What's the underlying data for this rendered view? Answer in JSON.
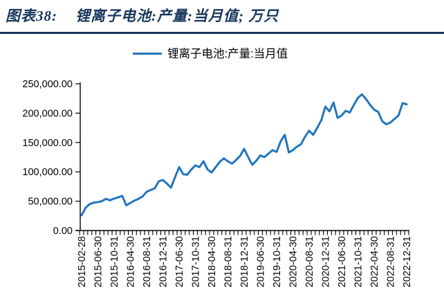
{
  "header": {
    "figure_label": "图表38:",
    "figure_title": "锂离子电池:产量:当月值; 万只"
  },
  "legend": {
    "label": "锂离子电池:产量:当月值"
  },
  "colors": {
    "title_navy": "#16365c",
    "rule_navy": "#16365c",
    "series_blue": "#2175bc",
    "axis_black": "#000000"
  },
  "chart_data": {
    "type": "line",
    "title": "锂离子电池:产量:当月值",
    "unit": "万只",
    "legend_position": "top-center",
    "grid": false,
    "ylim": [
      0,
      250000
    ],
    "y_tick_step": 50000,
    "y_tick_labels": [
      "0.00",
      "50,000.00",
      "100,000.00",
      "150,000.00",
      "200,000.00",
      "250,000.00"
    ],
    "x_label_every": 4,
    "x_tick_labels": [
      "2015-02-28",
      "2015-06-30",
      "2015-10-31",
      "2016-04-30",
      "2016-08-31",
      "2016-12-31",
      "2017-06-30",
      "2017-10-31",
      "2018-04-30",
      "2018-08-31",
      "2018-12-31",
      "2019-06-30",
      "2019-10-31",
      "2020-04-30",
      "2020-08-31",
      "2020-12-31",
      "2021-06-30",
      "2021-10-31",
      "2022-04-30",
      "2022-08-31",
      "2022-12-31"
    ],
    "x": [
      "2015-02-28",
      "2015-03-31",
      "2015-04-30",
      "2015-05-31",
      "2015-06-30",
      "2015-07-31",
      "2015-08-31",
      "2015-09-30",
      "2015-10-31",
      "2015-11-30",
      "2015-12-31",
      "2016-03-31",
      "2016-04-30",
      "2016-05-31",
      "2016-06-30",
      "2016-07-31",
      "2016-08-31",
      "2016-09-30",
      "2016-10-31",
      "2016-11-30",
      "2016-12-31",
      "2017-03-31",
      "2017-04-30",
      "2017-05-31",
      "2017-06-30",
      "2017-07-31",
      "2017-08-31",
      "2017-09-30",
      "2017-10-31",
      "2017-11-30",
      "2017-12-31",
      "2018-03-31",
      "2018-04-30",
      "2018-05-31",
      "2018-06-30",
      "2018-07-31",
      "2018-08-31",
      "2018-09-30",
      "2018-10-31",
      "2018-11-30",
      "2018-12-31",
      "2019-03-31",
      "2019-04-30",
      "2019-05-31",
      "2019-06-30",
      "2019-07-31",
      "2019-08-31",
      "2019-09-30",
      "2019-10-31",
      "2019-11-30",
      "2019-12-31",
      "2020-03-31",
      "2020-04-30",
      "2020-05-31",
      "2020-06-30",
      "2020-07-31",
      "2020-08-31",
      "2020-09-30",
      "2020-10-31",
      "2020-11-30",
      "2020-12-31",
      "2021-03-31",
      "2021-04-30",
      "2021-05-31",
      "2021-06-30",
      "2021-07-31",
      "2021-08-31",
      "2021-09-30",
      "2021-10-31",
      "2021-11-30",
      "2021-12-31",
      "2022-03-31",
      "2022-04-30",
      "2022-05-31",
      "2022-06-30",
      "2022-07-31",
      "2022-08-31",
      "2022-09-30",
      "2022-10-31",
      "2022-11-30",
      "2022-12-31"
    ],
    "values": [
      26000,
      39000,
      45000,
      47500,
      48500,
      50000,
      54000,
      51500,
      54500,
      56500,
      59000,
      43000,
      47000,
      51000,
      54000,
      58000,
      66000,
      69000,
      72000,
      84000,
      86000,
      80000,
      73000,
      91000,
      108000,
      96000,
      95000,
      104000,
      111000,
      108000,
      118000,
      104000,
      99000,
      108000,
      117000,
      123000,
      118000,
      114000,
      120000,
      127000,
      139000,
      125000,
      112000,
      119000,
      128000,
      125000,
      131000,
      137000,
      134000,
      152000,
      163000,
      133000,
      137000,
      143000,
      147000,
      160000,
      170000,
      163000,
      175000,
      188000,
      211000,
      203000,
      218000,
      192000,
      196000,
      204000,
      201000,
      214000,
      226000,
      232000,
      224000,
      214000,
      206000,
      202000,
      186000,
      181000,
      184000,
      190000,
      196000,
      217000,
      215000
    ]
  }
}
